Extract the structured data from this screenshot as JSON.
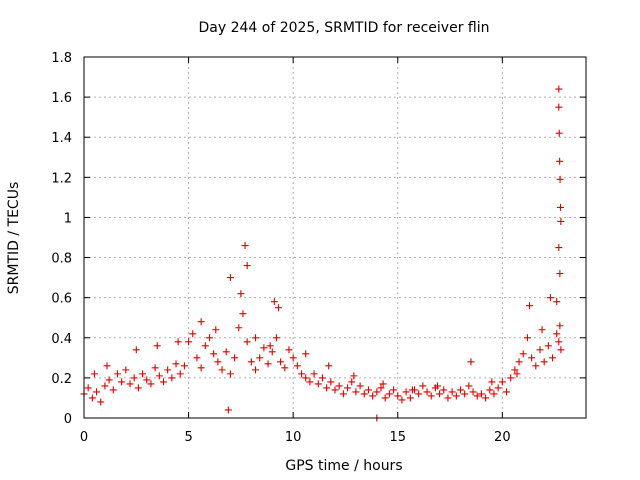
{
  "chart_data": {
    "type": "scatter",
    "title": "Day 244 of 2025, SRMTID for receiver flin",
    "xlabel": "GPS time / hours",
    "ylabel": "SRMTID / TECUs",
    "xlim": [
      0,
      24
    ],
    "ylim": [
      0,
      1.8
    ],
    "xticks": [
      0,
      5,
      10,
      15,
      20
    ],
    "xtick_labels": [
      "0",
      "5",
      "10",
      "15",
      "20"
    ],
    "yticks": [
      0,
      0.2,
      0.4,
      0.6,
      0.8,
      1,
      1.2,
      1.4,
      1.6,
      1.8
    ],
    "ytick_labels": [
      "0",
      "0.2",
      "0.4",
      "0.6",
      "0.8",
      "1",
      "1.2",
      "1.4",
      "1.6",
      "1.8"
    ],
    "grid": true,
    "marker": "plus",
    "color": "#dd0000",
    "series": [
      {
        "name": "SRMTID",
        "x": [
          0.0,
          0.2,
          0.4,
          0.6,
          0.8,
          1.0,
          1.2,
          1.4,
          1.6,
          1.8,
          2.0,
          2.2,
          2.4,
          2.6,
          2.8,
          3.0,
          3.2,
          3.4,
          3.6,
          3.8,
          4.0,
          4.2,
          4.4,
          4.6,
          4.8,
          5.0,
          5.2,
          5.4,
          5.6,
          5.8,
          6.0,
          6.2,
          6.4,
          6.6,
          6.8,
          7.0,
          7.2,
          7.4,
          7.6,
          7.8,
          8.0,
          8.2,
          8.4,
          8.6,
          8.8,
          9.0,
          9.2,
          9.4,
          9.6,
          9.8,
          10.0,
          10.2,
          10.4,
          10.6,
          10.8,
          11.0,
          11.2,
          11.4,
          11.6,
          11.8,
          12.0,
          12.2,
          12.4,
          12.6,
          12.8,
          13.0,
          13.2,
          13.4,
          13.6,
          13.8,
          14.0,
          14.2,
          14.4,
          14.6,
          14.8,
          15.0,
          15.2,
          15.4,
          15.6,
          15.8,
          16.0,
          16.2,
          16.4,
          16.6,
          16.8,
          17.0,
          17.2,
          17.4,
          17.6,
          17.8,
          18.0,
          18.2,
          18.4,
          18.6,
          18.8,
          19.0,
          19.2,
          19.4,
          19.6,
          19.8,
          20.0,
          20.2,
          20.4,
          20.6,
          20.8,
          21.0,
          21.2,
          21.4,
          21.6,
          21.8,
          22.0,
          22.2,
          22.4,
          22.6,
          22.7,
          22.75,
          22.8,
          7.0,
          7.7,
          7.8,
          9.1,
          9.3,
          22.7,
          22.72,
          22.74,
          22.76,
          22.78,
          22.8,
          22.7,
          22.75,
          22.7,
          0.5,
          1.1,
          2.5,
          3.5,
          4.5,
          5.6,
          6.3,
          8.2,
          8.9,
          10.6,
          11.7,
          12.9,
          14.3,
          15.7,
          16.9,
          18.5,
          19.5,
          20.7,
          21.3,
          21.9,
          22.3,
          22.6,
          7.5,
          6.9,
          14.0
        ],
        "y": [
          0.12,
          0.15,
          0.1,
          0.13,
          0.08,
          0.16,
          0.19,
          0.14,
          0.22,
          0.18,
          0.24,
          0.17,
          0.2,
          0.15,
          0.22,
          0.19,
          0.17,
          0.25,
          0.21,
          0.18,
          0.24,
          0.2,
          0.27,
          0.22,
          0.26,
          0.38,
          0.42,
          0.3,
          0.25,
          0.36,
          0.4,
          0.32,
          0.28,
          0.24,
          0.33,
          0.22,
          0.3,
          0.45,
          0.52,
          0.38,
          0.28,
          0.24,
          0.3,
          0.35,
          0.27,
          0.33,
          0.4,
          0.28,
          0.25,
          0.34,
          0.3,
          0.26,
          0.22,
          0.2,
          0.18,
          0.22,
          0.17,
          0.2,
          0.15,
          0.18,
          0.14,
          0.16,
          0.12,
          0.15,
          0.18,
          0.13,
          0.16,
          0.12,
          0.14,
          0.11,
          0.13,
          0.15,
          0.1,
          0.12,
          0.14,
          0.11,
          0.09,
          0.13,
          0.1,
          0.14,
          0.12,
          0.16,
          0.13,
          0.11,
          0.15,
          0.12,
          0.14,
          0.1,
          0.13,
          0.11,
          0.14,
          0.12,
          0.16,
          0.13,
          0.11,
          0.12,
          0.1,
          0.14,
          0.12,
          0.15,
          0.18,
          0.13,
          0.2,
          0.24,
          0.28,
          0.32,
          0.4,
          0.3,
          0.26,
          0.34,
          0.28,
          0.36,
          0.3,
          0.42,
          0.38,
          0.46,
          0.34,
          0.7,
          0.86,
          0.76,
          0.58,
          0.55,
          1.64,
          1.42,
          1.28,
          1.19,
          1.05,
          0.98,
          0.85,
          0.72,
          1.55,
          0.22,
          0.26,
          0.34,
          0.36,
          0.38,
          0.48,
          0.44,
          0.4,
          0.36,
          0.32,
          0.26,
          0.21,
          0.17,
          0.14,
          0.16,
          0.28,
          0.18,
          0.22,
          0.56,
          0.44,
          0.6,
          0.58,
          0.62,
          0.04,
          0.0
        ]
      }
    ]
  }
}
